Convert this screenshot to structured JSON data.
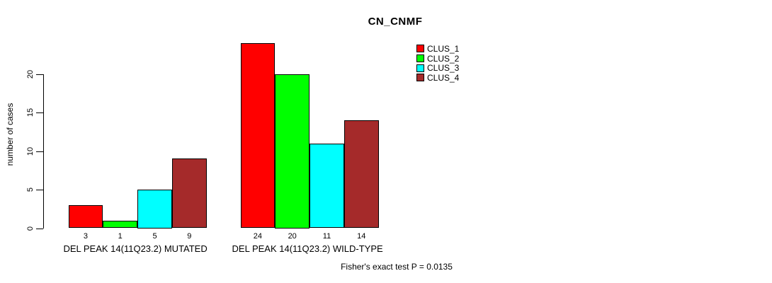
{
  "title": "CN_CNMF",
  "y_axis": {
    "label": "number of cases",
    "ticks": [
      0,
      5,
      10,
      15,
      20
    ]
  },
  "footnote": "Fisher's exact test P = 0.0135",
  "legend": {
    "items": [
      {
        "label": "CLUS_1",
        "color": "#ff0000"
      },
      {
        "label": "CLUS_2",
        "color": "#00ff00"
      },
      {
        "label": "CLUS_3",
        "color": "#00ffff"
      },
      {
        "label": "CLUS_4",
        "color": "#a52a2a"
      }
    ]
  },
  "chart_data": {
    "type": "bar",
    "title": "CN_CNMF",
    "xlabel": "",
    "ylabel": "number of cases",
    "ylim": [
      0,
      24
    ],
    "yticks": [
      0,
      5,
      10,
      15,
      20
    ],
    "grid": false,
    "legend_position": "top-right",
    "categories": [
      "DEL PEAK 14(11Q23.2) MUTATED",
      "DEL PEAK 14(11Q23.2) WILD-TYPE"
    ],
    "series": [
      {
        "name": "CLUS_1",
        "color": "#ff0000",
        "values": [
          3,
          24
        ]
      },
      {
        "name": "CLUS_2",
        "color": "#00ff00",
        "values": [
          1,
          20
        ]
      },
      {
        "name": "CLUS_3",
        "color": "#00ffff",
        "values": [
          5,
          11
        ]
      },
      {
        "name": "CLUS_4",
        "color": "#a52a2a",
        "values": [
          9,
          14
        ]
      }
    ],
    "bar_value_labels": [
      [
        3,
        1,
        5,
        9
      ],
      [
        24,
        20,
        11,
        14
      ]
    ],
    "annotation": "Fisher's exact test P = 0.0135"
  }
}
